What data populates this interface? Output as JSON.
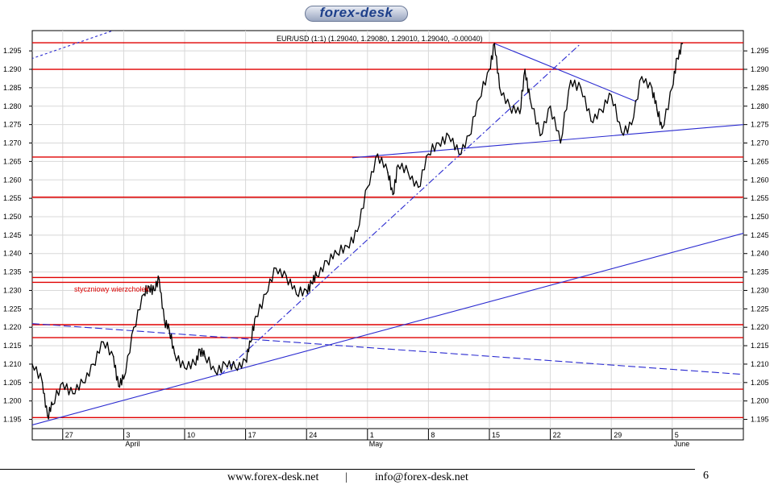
{
  "logo": {
    "text": "forex-desk"
  },
  "chart_data": {
    "type": "candlestick",
    "title": "EUR/USD (1:1) (1.29040, 1.29080, 1.29010, 1.29040, -0.00040)",
    "annotation": "styczniowy wierzchołek",
    "ylim": [
      1.1925,
      1.3005
    ],
    "yticks": [
      1.195,
      1.2,
      1.205,
      1.21,
      1.215,
      1.22,
      1.225,
      1.23,
      1.235,
      1.24,
      1.245,
      1.25,
      1.255,
      1.26,
      1.265,
      1.27,
      1.275,
      1.28,
      1.285,
      1.29,
      1.295
    ],
    "ytick_labels": [
      "1.195",
      "1.200",
      "1.205",
      "1.210",
      "1.215",
      "1.220",
      "1.225",
      "1.230",
      "1.235",
      "1.240",
      "1.245",
      "1.250",
      "1.255",
      "1.260",
      "1.265",
      "1.270",
      "1.275",
      "1.280",
      "1.285",
      "1.290",
      "1.295"
    ],
    "xlim": [
      0,
      70
    ],
    "xticks": [
      {
        "x": 3,
        "label": "27"
      },
      {
        "x": 9,
        "label": "3",
        "month": "April"
      },
      {
        "x": 15,
        "label": "10"
      },
      {
        "x": 21,
        "label": "17"
      },
      {
        "x": 27,
        "label": "24"
      },
      {
        "x": 33,
        "label": "1",
        "month": "May"
      },
      {
        "x": 39,
        "label": "8"
      },
      {
        "x": 45,
        "label": "15"
      },
      {
        "x": 51,
        "label": "22"
      },
      {
        "x": 57,
        "label": "29"
      },
      {
        "x": 63,
        "label": "5",
        "month": "June"
      }
    ],
    "series": [
      {
        "x": [
          0,
          1,
          1.5,
          2,
          3,
          4,
          5,
          6,
          7,
          8,
          8.5,
          9,
          10,
          11,
          11.5,
          12,
          12.5,
          13,
          13.5,
          14,
          15,
          16,
          16.5,
          17,
          18,
          19,
          20,
          21,
          21.5,
          22,
          23,
          24,
          25,
          26,
          27,
          27.5,
          28,
          29,
          30,
          31,
          32,
          33,
          34,
          35,
          35.5,
          36,
          37,
          38,
          39,
          40,
          41,
          42,
          43,
          44,
          45,
          45.5,
          46,
          47,
          48,
          48.5,
          49,
          50,
          51,
          52,
          53,
          54,
          55,
          56,
          57,
          58,
          59,
          60,
          61,
          61.5,
          62,
          63,
          63.5,
          64
        ],
        "values": [
          1.21,
          1.205,
          1.196,
          1.199,
          1.205,
          1.202,
          1.205,
          1.21,
          1.216,
          1.212,
          1.204,
          1.206,
          1.22,
          1.229,
          1.231,
          1.23,
          1.233,
          1.222,
          1.219,
          1.213,
          1.209,
          1.21,
          1.214,
          1.212,
          1.208,
          1.21,
          1.209,
          1.211,
          1.216,
          1.223,
          1.229,
          1.236,
          1.234,
          1.229,
          1.23,
          1.232,
          1.234,
          1.238,
          1.24,
          1.242,
          1.246,
          1.258,
          1.267,
          1.262,
          1.256,
          1.264,
          1.262,
          1.258,
          1.267,
          1.27,
          1.272,
          1.267,
          1.272,
          1.282,
          1.29,
          1.297,
          1.285,
          1.28,
          1.278,
          1.29,
          1.282,
          1.272,
          1.28,
          1.27,
          1.287,
          1.285,
          1.276,
          1.279,
          1.283,
          1.273,
          1.275,
          1.288,
          1.285,
          1.279,
          1.274,
          1.285,
          1.293,
          1.297
        ]
      }
    ],
    "horizontal_levels": [
      1.1955,
      1.2032,
      1.2172,
      1.2207,
      1.2322,
      1.2335,
      1.2553,
      1.2662,
      1.29,
      1.2972
    ],
    "trendlines": [
      {
        "from": [
          0,
          1.1935
        ],
        "to": [
          70,
          1.2455
        ],
        "style": "solid"
      },
      {
        "from": [
          0,
          1.221
        ],
        "to": [
          70,
          1.2072
        ],
        "style": "dashed"
      },
      {
        "from": [
          31.5,
          1.266
        ],
        "to": [
          70,
          1.275
        ],
        "style": "solid"
      },
      {
        "from": [
          45.5,
          1.297
        ],
        "to": [
          59.5,
          1.2812
        ],
        "style": "solid"
      },
      {
        "from": [
          18.5,
          1.207
        ],
        "to": [
          54,
          1.297
        ],
        "style": "dashdot"
      },
      {
        "from": [
          -1,
          1.292
        ],
        "to": [
          9,
          1.3015
        ],
        "style": "dotted"
      }
    ],
    "grid": true
  },
  "footer": {
    "website": "www.forex-desk.net",
    "separator": "|",
    "email": "info@forex-desk.net",
    "page_number": "6"
  }
}
